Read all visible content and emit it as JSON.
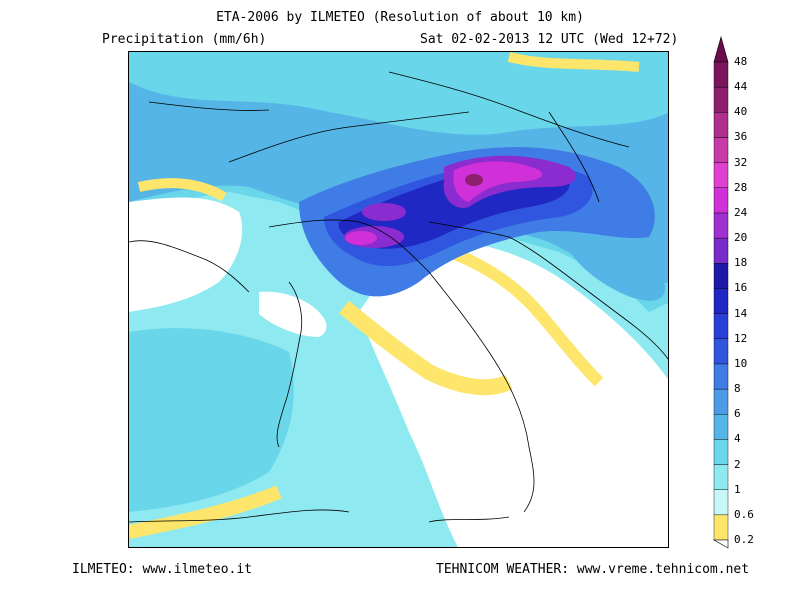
{
  "header": {
    "title": "ETA-2006 by ILMETEO (Resolution of about 10 km)",
    "subtitle_left": "Precipitation (mm/6h)",
    "subtitle_right": "Sat 02-02-2013 12 UTC (Wed 12+72)"
  },
  "footer": {
    "left": "ILMETEO: www.ilmeteo.it",
    "right": "TEHNICOM WEATHER: www.vreme.tehnicom.net"
  },
  "legend": {
    "levels": [
      "0.2",
      "0.6",
      "1",
      "2",
      "4",
      "6",
      "8",
      "10",
      "12",
      "14",
      "16",
      "18",
      "20",
      "24",
      "28",
      "32",
      "36",
      "40",
      "44",
      "48"
    ],
    "colors": [
      "#fde66b",
      "#c7f7f6",
      "#8eeaf0",
      "#6ad6ea",
      "#55b5e6",
      "#4c9be6",
      "#3f7ce6",
      "#3056e0",
      "#2a3ed8",
      "#2028c4",
      "#1d1aa6",
      "#7a2cc8",
      "#a030d0",
      "#d030d8",
      "#e040d0",
      "#c83aa8",
      "#b02e8e",
      "#8e1e6e",
      "#7a145c",
      "#6a0c4e"
    ]
  },
  "map": {
    "palette": {
      "yellow": "#fde66b",
      "pale_cyan": "#c7f7f6",
      "light_cyan": "#8eeaf0",
      "cyan": "#6ad6ea",
      "sky": "#55b5e6",
      "mid_blue": "#4c9be6",
      "blue": "#3f7ce6",
      "deep_blue": "#3056e0",
      "navy": "#2028c4",
      "purple": "#8a2ccf",
      "magenta": "#d030d8",
      "plum": "#8e1e6e",
      "land_white": "#ffffff",
      "border": "#000000"
    }
  }
}
